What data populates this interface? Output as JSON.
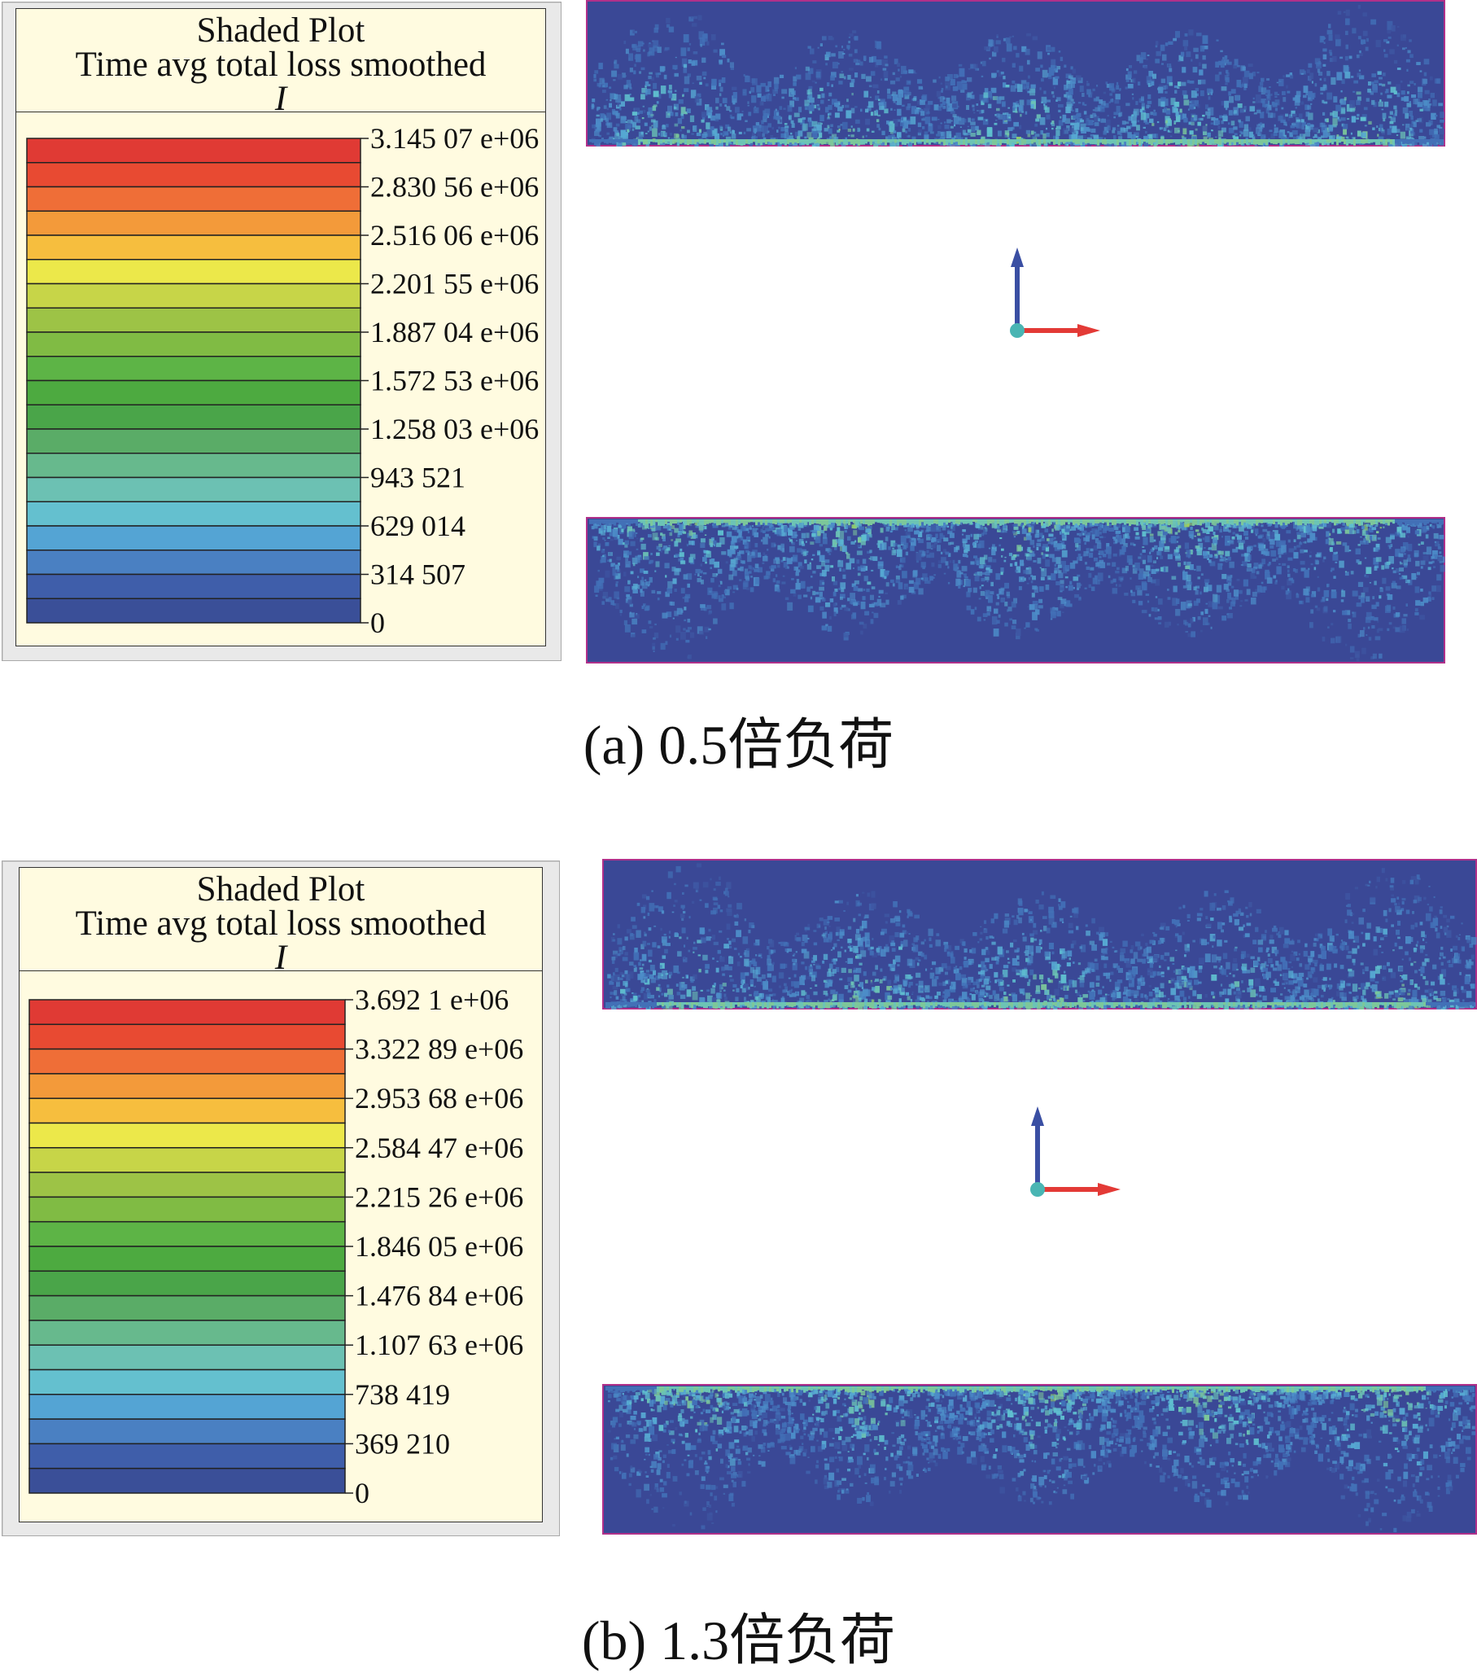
{
  "panels": [
    {
      "id": "a",
      "legend": {
        "title": "Shaded Plot",
        "subtitle": "Time avg total loss smoothed",
        "unit": "I",
        "tick_labels": [
          "3.145 07 e+06",
          "2.830 56 e+06",
          "2.516 06 e+06",
          "2.201 55 e+06",
          "1.887 04 e+06",
          "1.572 53 e+06",
          "1.258 03 e+06",
          "943 521",
          "629 014",
          "314 507",
          "0"
        ]
      },
      "caption": "(a) 0.5倍负荷"
    },
    {
      "id": "b",
      "legend": {
        "title": "Shaded Plot",
        "subtitle": "Time avg total loss smoothed",
        "unit": "I",
        "tick_labels": [
          "3.692 1 e+06",
          "3.322 89 e+06",
          "2.953 68 e+06",
          "2.584 47 e+06",
          "2.215 26 e+06",
          "1.846 05 e+06",
          "1.476 84 e+06",
          "1.107 63 e+06",
          "738 419",
          "369 210",
          "0"
        ]
      },
      "caption": "(b) 1.3倍负荷"
    }
  ],
  "colors": {
    "scale_top_to_bottom": [
      "#e03a34",
      "#e84a32",
      "#ef6e37",
      "#f39a3a",
      "#f6be3e",
      "#ece84a",
      "#c7d548",
      "#9dc346",
      "#80bb44",
      "#5db446",
      "#4daa40",
      "#4aa549",
      "#5aac67",
      "#67b98d",
      "#6cc1b3",
      "#64c0cf",
      "#54a4d4",
      "#4a80c2",
      "#3f5eaa",
      "#3a4f98"
    ],
    "field_background": "#3a4896",
    "field_border": "#b0308a",
    "axis_x": "#e33a36",
    "axis_y": "#3a4fa3",
    "axis_origin": "#49b5b3"
  }
}
